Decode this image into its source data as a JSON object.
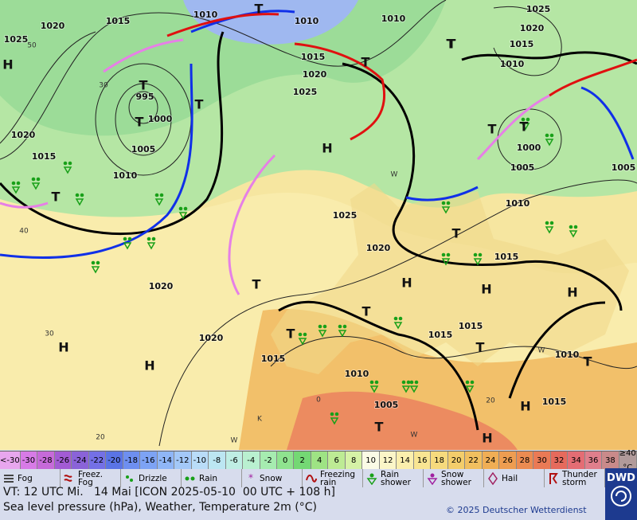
{
  "map": {
    "pressure_labels": [
      1015,
      1010,
      1010,
      1010,
      1025,
      1020,
      1015,
      1010,
      1025,
      1020,
      995,
      1000,
      1005,
      1010,
      1020,
      1015,
      1015,
      1020,
      1025,
      1025,
      1020,
      1010,
      1000,
      1005,
      1005,
      1015,
      1020,
      1020,
      1015,
      1010,
      1015,
      1015,
      1010,
      1015,
      1005
    ],
    "pressure_centers": [
      "H",
      "H",
      "H",
      "H",
      "H",
      "H",
      "H",
      "H",
      "H",
      "T",
      "T",
      "T",
      "T",
      "T",
      "T",
      "T",
      "T",
      "T",
      "T",
      "T",
      "T",
      "T",
      "T",
      "T",
      "T",
      "T"
    ],
    "isotherm_labels": [
      50,
      30,
      40,
      30,
      20,
      20,
      0
    ],
    "air_mass_letters": [
      "W",
      "K",
      "W",
      "W",
      "W"
    ]
  },
  "legend": {
    "temperature_scale": [
      {
        "value": -30,
        "label": "<-30"
      },
      -30,
      -28,
      -26,
      -24,
      -22,
      -20,
      -18,
      -16,
      -14,
      -12,
      -10,
      -8,
      -6,
      -4,
      -2,
      0,
      2,
      4,
      6,
      8,
      10,
      12,
      14,
      16,
      18,
      20,
      22,
      24,
      26,
      28,
      30,
      32,
      34,
      36,
      38,
      {
        "value": 40,
        "label": "≥40"
      }
    ],
    "temperature_unit": "°C",
    "temperature_colors": [
      "#e8a6ee",
      "#d77be6",
      "#c66ad9",
      "#a25bd4",
      "#8a63d8",
      "#7470e6",
      "#5a74e6",
      "#6e8ff0",
      "#7da3f5",
      "#8fb6f7",
      "#a3c8f8",
      "#b9dcf8",
      "#bce6f2",
      "#bfeee4",
      "#b9f0d0",
      "#a6ecb0",
      "#8fe38f",
      "#74d874",
      "#9ee384",
      "#bdeb94",
      "#d6f2a6",
      "#fbfbe6",
      "#fbf6c8",
      "#fbefad",
      "#f9e592",
      "#f6da7d",
      "#f3cd6b",
      "#f1bf5f",
      "#f0ae55",
      "#ee9d51",
      "#ec8b51",
      "#ea7a55",
      "#e66a5c",
      "#e46d74",
      "#e07f8c",
      "#c98a8a",
      "#b19a9a"
    ],
    "weather": [
      "Fog",
      "Freez. Fog",
      "Drizzle",
      "Rain",
      "Snow",
      "Freezing rain",
      "Rain shower",
      "Snow shower",
      "Hail",
      "Thunder storm"
    ]
  },
  "footer": {
    "valid_time": "VT: 12 UTC Mi.   14 Mai [ICON 2025-05-10  00 UTC + 108 h]",
    "description": "Sea level pressure (hPa), Weather, Temperature 2m (°C)",
    "copyright": "© 2025 Deutscher Wetterdienst",
    "logo": "DWD"
  }
}
